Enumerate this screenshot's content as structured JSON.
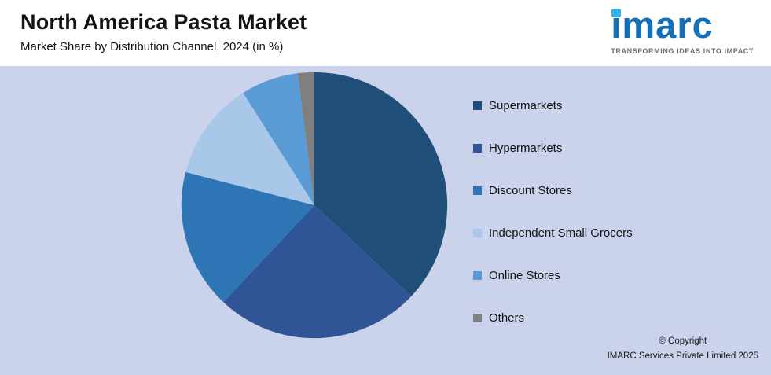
{
  "header": {
    "title": "North America Pasta Market",
    "subtitle": "Market Share by Distribution Channel, 2024 (in %)"
  },
  "logo": {
    "text": "imarc",
    "tagline": "TRANSFORMING IDEAS INTO IMPACT",
    "brand_blue": "#146fb7",
    "brand_cyan": "#35b3e8"
  },
  "chart_data": {
    "type": "pie",
    "title": "North America Pasta Market",
    "subtitle": "Market Share by Distribution Channel, 2024 (in %)",
    "legend_position": "right",
    "start_angle_deg": 0,
    "direction": "clockwise",
    "slices": [
      {
        "label": "Supermarkets",
        "value": 37,
        "color": "#1f4e79"
      },
      {
        "label": "Hypermarkets",
        "value": 25,
        "color": "#2f5597"
      },
      {
        "label": "Discount Stores",
        "value": 17,
        "color": "#2e75b6"
      },
      {
        "label": "Independent Small Grocers",
        "value": 12,
        "color": "#a9c7e9"
      },
      {
        "label": "Online Stores",
        "value": 7,
        "color": "#5b9bd5"
      },
      {
        "label": "Others",
        "value": 2,
        "color": "#7f7f7f"
      }
    ]
  },
  "footer": {
    "copyright_line1": "© Copyright",
    "copyright_line2": "IMARC Services Private Limited 2025"
  }
}
